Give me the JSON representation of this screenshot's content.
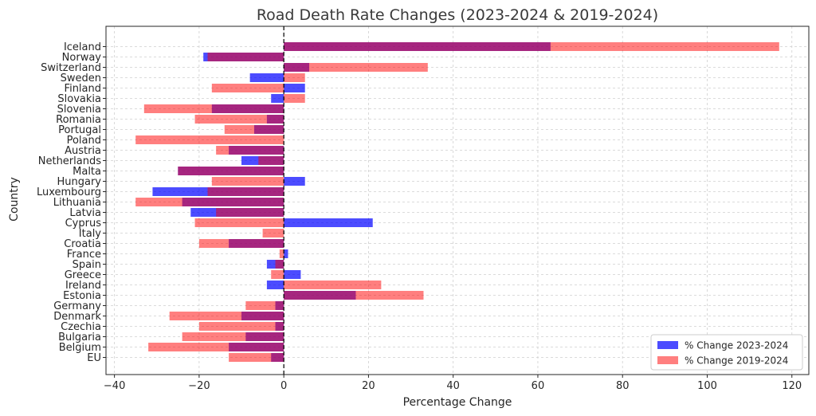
{
  "chart_data": {
    "type": "bar",
    "orientation": "horizontal",
    "title": "Road Death Rate Changes (2023-2024 & 2019-2024)",
    "xlabel": "Percentage Change",
    "ylabel": "Country",
    "xlim": [
      -42,
      124
    ],
    "xticks": [
      -40,
      -20,
      0,
      20,
      40,
      60,
      80,
      100,
      120
    ],
    "xtick_labels": [
      "−40",
      "−20",
      "0",
      "20",
      "40",
      "60",
      "80",
      "100",
      "120"
    ],
    "grid": true,
    "zero_line": "dashed",
    "legend_position": "bottom-right",
    "categories": [
      "Iceland",
      "Norway",
      "Switzerland",
      "Sweden",
      "Finland",
      "Slovakia",
      "Slovenia",
      "Romania",
      "Portugal",
      "Poland",
      "Austria",
      "Netherlands",
      "Malta",
      "Hungary",
      "Luxembourg",
      "Lithuania",
      "Latvia",
      "Cyprus",
      "Italy",
      "Croatia",
      "France",
      "Spain",
      "Greece",
      "Ireland",
      "Estonia",
      "Germany",
      "Denmark",
      "Czechia",
      "Bulgaria",
      "Belgium",
      "EU"
    ],
    "series": [
      {
        "name": "% Change 2023-2024",
        "color": "#0000ff",
        "opacity": 0.7,
        "values": [
          63,
          -19,
          6,
          -8,
          5,
          -3,
          -17,
          -4,
          -7,
          0,
          -13,
          -10,
          -25,
          5,
          -31,
          -24,
          -22,
          21,
          0,
          -13,
          1,
          -4,
          4,
          -4,
          17,
          -2,
          -10,
          -2,
          -9,
          -13,
          -3
        ]
      },
      {
        "name": "% Change 2019-2024",
        "color": "#ff0000",
        "opacity": 0.5,
        "values": [
          117,
          -18,
          34,
          5,
          -17,
          5,
          -33,
          -21,
          -14,
          -35,
          -16,
          -6,
          -25,
          -17,
          -18,
          -35,
          -16,
          -21,
          -5,
          -20,
          -1,
          -2,
          -3,
          23,
          33,
          -9,
          -27,
          -20,
          -24,
          -32,
          -13
        ]
      }
    ]
  }
}
